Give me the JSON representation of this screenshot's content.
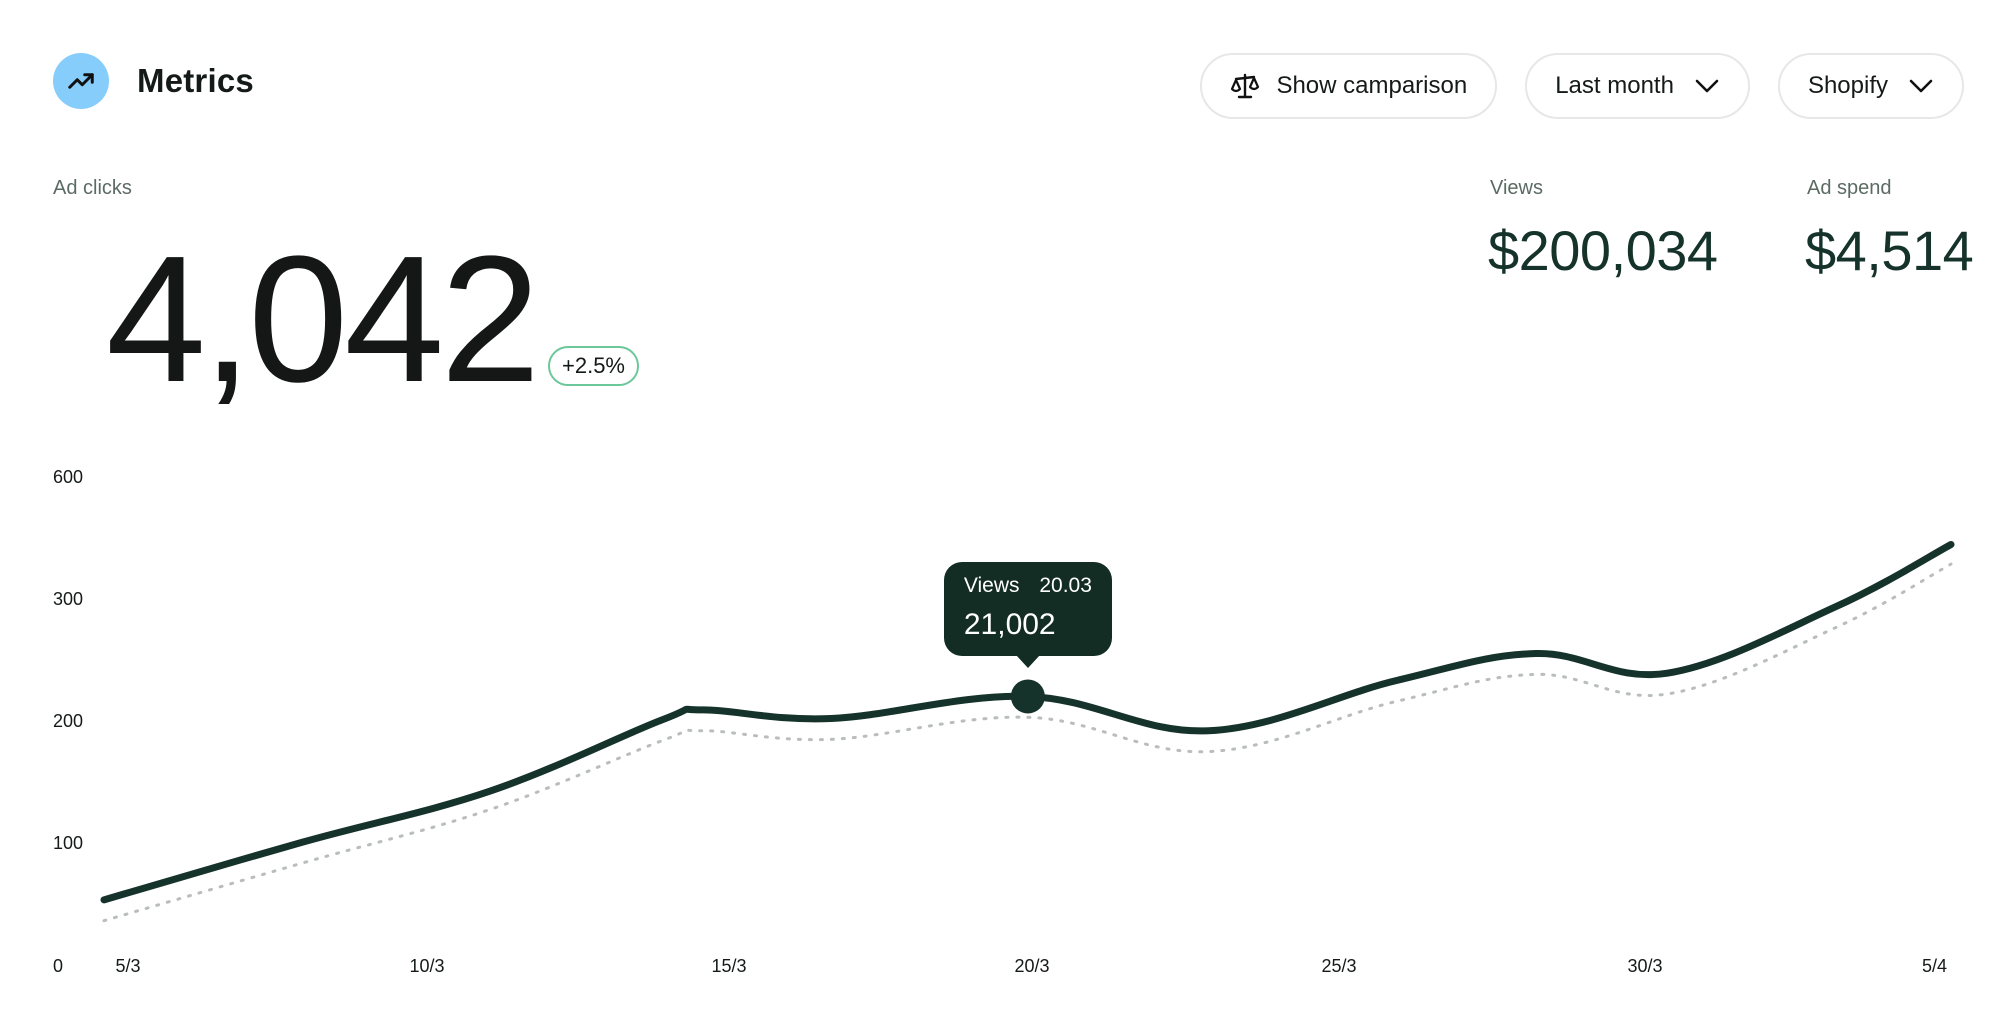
{
  "header": {
    "title": "Metrics",
    "icon": "trending-up-icon",
    "icon_bg": "#87cdfb"
  },
  "controls": {
    "comparison_label": "Show camparison",
    "period_label": "Last month",
    "source_label": "Shopify"
  },
  "metrics": {
    "primary": {
      "label": "Ad clicks",
      "value": "4,042",
      "change": "+2.5%"
    },
    "views": {
      "label": "Views",
      "value": "$200,034"
    },
    "ad_spend": {
      "label": "Ad spend",
      "value": "$4,514"
    }
  },
  "tooltip": {
    "series": "Views",
    "date": "20.03",
    "value": "21,002"
  },
  "colors": {
    "line": "#15332a",
    "comparison": "#b9bdbb",
    "badge_border": "#6cc79a",
    "tooltip_bg": "#132d24"
  },
  "chart_data": {
    "type": "line",
    "y_tick_labels": [
      "0",
      "100",
      "200",
      "300",
      "600"
    ],
    "x_tick_labels": [
      "5/3",
      "10/3",
      "15/3",
      "20/3",
      "25/3",
      "30/3",
      "5/4"
    ],
    "highlight_index": 6,
    "series": [
      {
        "style": "solid",
        "values": [
          {
            "x": 0,
            "y": 45
          },
          {
            "x": 0.1073,
            "y": 92
          },
          {
            "x": 0.2095,
            "y": 134
          },
          {
            "x": 0.3023,
            "y": 192
          },
          {
            "x": 0.3247,
            "y": 200
          },
          {
            "x": 0.3937,
            "y": 193
          },
          {
            "x": 0.5002,
            "y": 211
          },
          {
            "x": 0.5979,
            "y": 183
          },
          {
            "x": 0.6998,
            "y": 224
          },
          {
            "x": 0.7753,
            "y": 246
          },
          {
            "x": 0.8464,
            "y": 230
          },
          {
            "x": 0.9373,
            "y": 284
          },
          {
            "x": 1,
            "y": 335
          }
        ]
      },
      {
        "style": "dotted",
        "values": [
          {
            "x": 0,
            "y": 28
          },
          {
            "x": 0.1073,
            "y": 75
          },
          {
            "x": 0.2095,
            "y": 119
          },
          {
            "x": 0.3023,
            "y": 175
          },
          {
            "x": 0.3247,
            "y": 183
          },
          {
            "x": 0.3937,
            "y": 176
          },
          {
            "x": 0.5002,
            "y": 194
          },
          {
            "x": 0.5979,
            "y": 166
          },
          {
            "x": 0.6998,
            "y": 207
          },
          {
            "x": 0.7753,
            "y": 229
          },
          {
            "x": 0.8464,
            "y": 213
          },
          {
            "x": 0.9373,
            "y": 267
          },
          {
            "x": 1,
            "y": 319
          }
        ]
      }
    ]
  }
}
